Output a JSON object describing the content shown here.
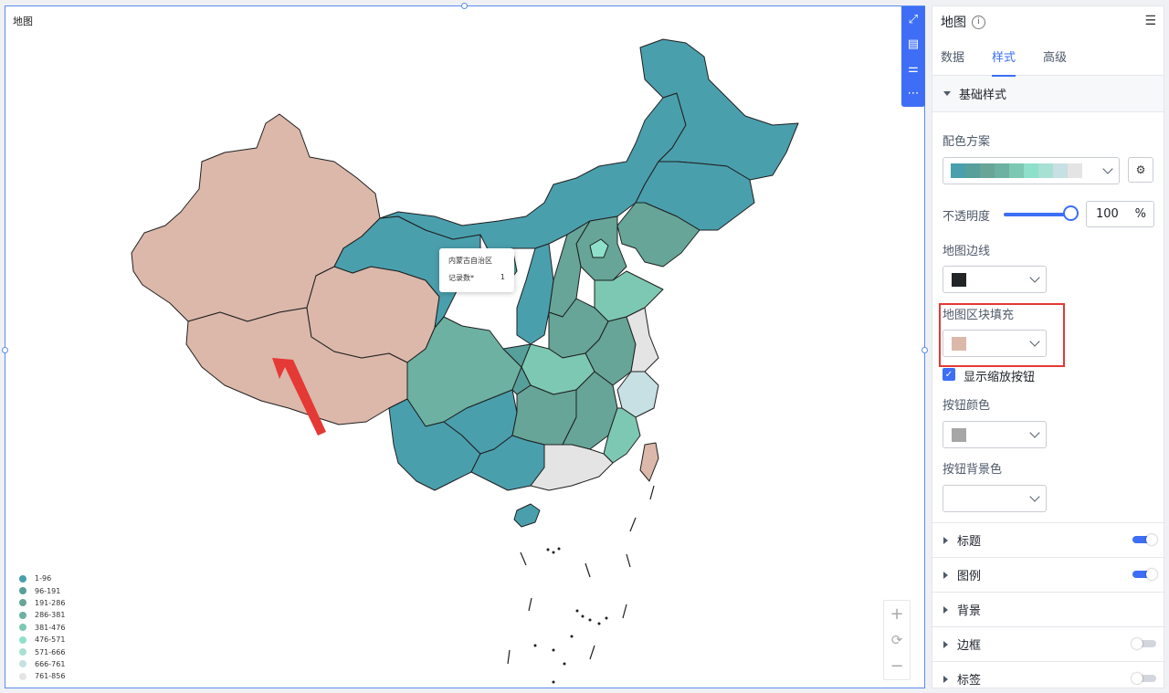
{
  "canvas": {
    "title": "地图",
    "toolbar_icons": [
      "expand-icon",
      "document-icon",
      "sliders-icon",
      "more-icon"
    ]
  },
  "tooltip": {
    "region": "内蒙古自治区",
    "metric_label": "记录数*",
    "metric_value": "1"
  },
  "legend": [
    {
      "label": "1-96",
      "color": "#4a9fad"
    },
    {
      "label": "96-191",
      "color": "#569f9b"
    },
    {
      "label": "191-286",
      "color": "#66a597"
    },
    {
      "label": "286-381",
      "color": "#6cb1a1"
    },
    {
      "label": "381-476",
      "color": "#7dc8b2"
    },
    {
      "label": "476-571",
      "color": "#8fe0ca"
    },
    {
      "label": "571-666",
      "color": "#a8e0d3"
    },
    {
      "label": "666-761",
      "color": "#c7e0e3"
    },
    {
      "label": "761-856",
      "color": "#e4e4e4"
    }
  ],
  "map": {
    "region_fill_color": "#dbb8aa",
    "border_color": "#1f1f1f"
  },
  "zoom": {
    "in": "+",
    "reset": "⟳",
    "out": "−"
  },
  "panel": {
    "title": "地图",
    "tabs": [
      "数据",
      "样式",
      "高级"
    ],
    "active_tab": "样式",
    "section_basic": "基础样式",
    "color_scheme_label": "配色方案",
    "color_scheme": [
      "#4a9fad",
      "#569f9b",
      "#66a597",
      "#6cb1a1",
      "#7dc8b2",
      "#8fe0ca",
      "#a8e0d3",
      "#c7e0e3",
      "#e4e4e4"
    ],
    "opacity_label": "不透明度",
    "opacity_value": "100",
    "opacity_unit": "%",
    "border_label": "地图边线",
    "border_color": "#222426",
    "fill_label": "地图区块填充",
    "fill_color": "#dbb8aa",
    "show_zoom_label": "显示缩放按钮",
    "show_zoom_checked": true,
    "button_color_label": "按钮颜色",
    "button_color": "#a6a6a6",
    "button_bg_label": "按钮背景色",
    "button_bg_color": "#ffffff",
    "sections": [
      {
        "label": "标题",
        "toggle": "on"
      },
      {
        "label": "图例",
        "toggle": "on"
      },
      {
        "label": "背景",
        "toggle": "none"
      },
      {
        "label": "边框",
        "toggle": "off"
      },
      {
        "label": "标签",
        "toggle": "off"
      }
    ]
  }
}
